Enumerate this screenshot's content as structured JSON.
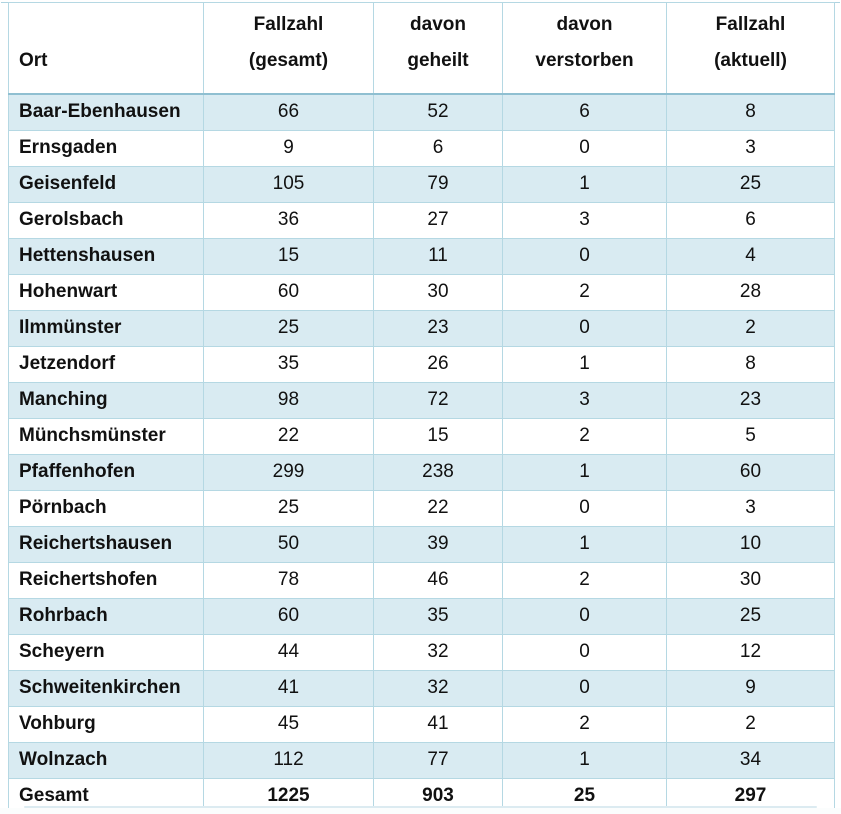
{
  "table": {
    "title_semantic": "Corona-Fallzahlen nach Ort",
    "header": {
      "cells": [
        {
          "line1": "",
          "line2": "Ort"
        },
        {
          "line1": "Fallzahl",
          "line2": "(gesamt)"
        },
        {
          "line1": "davon",
          "line2": "geheilt"
        },
        {
          "line1": "davon",
          "line2": "verstorben"
        },
        {
          "line1": "Fallzahl",
          "line2": "(aktuell)"
        }
      ]
    },
    "rows": [
      {
        "ort": "Baar-Ebenhausen",
        "gesamt": "66",
        "geheilt": "52",
        "verstorben": "6",
        "aktuell": "8"
      },
      {
        "ort": "Ernsgaden",
        "gesamt": "9",
        "geheilt": "6",
        "verstorben": "0",
        "aktuell": "3"
      },
      {
        "ort": "Geisenfeld",
        "gesamt": "105",
        "geheilt": "79",
        "verstorben": "1",
        "aktuell": "25"
      },
      {
        "ort": "Gerolsbach",
        "gesamt": "36",
        "geheilt": "27",
        "verstorben": "3",
        "aktuell": "6"
      },
      {
        "ort": "Hettenshausen",
        "gesamt": "15",
        "geheilt": "11",
        "verstorben": "0",
        "aktuell": "4"
      },
      {
        "ort": "Hohenwart",
        "gesamt": "60",
        "geheilt": "30",
        "verstorben": "2",
        "aktuell": "28"
      },
      {
        "ort": "Ilmmünster",
        "gesamt": "25",
        "geheilt": "23",
        "verstorben": "0",
        "aktuell": "2"
      },
      {
        "ort": "Jetzendorf",
        "gesamt": "35",
        "geheilt": "26",
        "verstorben": "1",
        "aktuell": "8"
      },
      {
        "ort": "Manching",
        "gesamt": "98",
        "geheilt": "72",
        "verstorben": "3",
        "aktuell": "23"
      },
      {
        "ort": "Münchsmünster",
        "gesamt": "22",
        "geheilt": "15",
        "verstorben": "2",
        "aktuell": "5"
      },
      {
        "ort": "Pfaffenhofen",
        "gesamt": "299",
        "geheilt": "238",
        "verstorben": "1",
        "aktuell": "60"
      },
      {
        "ort": "Pörnbach",
        "gesamt": "25",
        "geheilt": "22",
        "verstorben": "0",
        "aktuell": "3"
      },
      {
        "ort": "Reichertshausen",
        "gesamt": "50",
        "geheilt": "39",
        "verstorben": "1",
        "aktuell": "10"
      },
      {
        "ort": "Reichertshofen",
        "gesamt": "78",
        "geheilt": "46",
        "verstorben": "2",
        "aktuell": "30"
      },
      {
        "ort": "Rohrbach",
        "gesamt": "60",
        "geheilt": "35",
        "verstorben": "0",
        "aktuell": "25"
      },
      {
        "ort": "Scheyern",
        "gesamt": "44",
        "geheilt": "32",
        "verstorben": "0",
        "aktuell": "12"
      },
      {
        "ort": "Schweitenkirchen",
        "gesamt": "41",
        "geheilt": "32",
        "verstorben": "0",
        "aktuell": "9"
      },
      {
        "ort": "Vohburg",
        "gesamt": "45",
        "geheilt": "41",
        "verstorben": "2",
        "aktuell": "2"
      },
      {
        "ort": "Wolnzach",
        "gesamt": "112",
        "geheilt": "77",
        "verstorben": "1",
        "aktuell": "34"
      }
    ],
    "total": {
      "ort": "Gesamt",
      "gesamt": "1225",
      "geheilt": "903",
      "verstorben": "25",
      "aktuell": "297"
    },
    "colors": {
      "row_shade": "#d9ebf2",
      "border": "#b5d8e3",
      "header_underline": "#8fbfd1",
      "text": "#111111"
    }
  }
}
